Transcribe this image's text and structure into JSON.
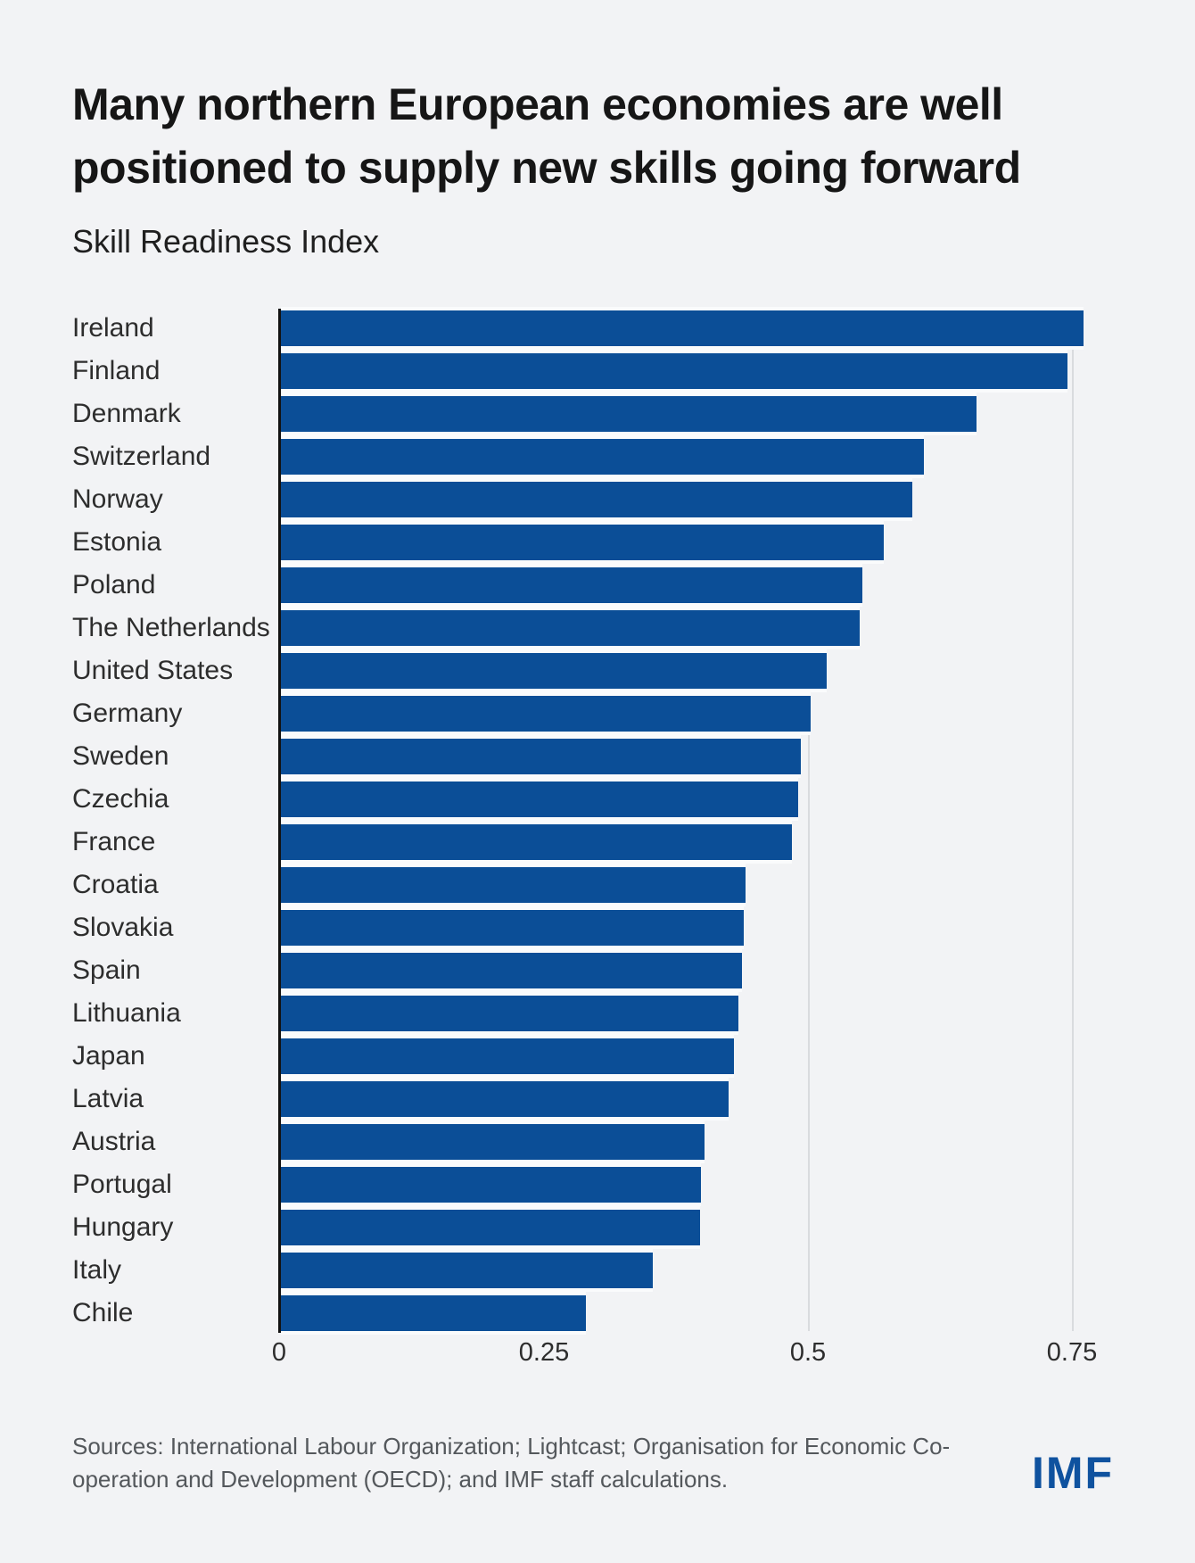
{
  "page": {
    "background": "#f2f3f5",
    "title_line1": "Many northern European economies are well",
    "title_line2": "positioned to supply new skills going forward",
    "subtitle": "Skill Readiness Index"
  },
  "chart_data": {
    "type": "bar",
    "orientation": "horizontal",
    "title": "Skill Readiness Index",
    "categories": [
      "Ireland",
      "Finland",
      "Denmark",
      "Switzerland",
      "Norway",
      "Estonia",
      "Poland",
      "The Netherlands",
      "United States",
      "Germany",
      "Sweden",
      "Czechia",
      "France",
      "Croatia",
      "Slovakia",
      "Spain",
      "Lithuania",
      "Japan",
      "Latvia",
      "Austria",
      "Portugal",
      "Hungary",
      "Italy",
      "Chile"
    ],
    "values": [
      0.76,
      0.745,
      0.659,
      0.609,
      0.598,
      0.571,
      0.551,
      0.548,
      0.517,
      0.502,
      0.492,
      0.49,
      0.484,
      0.44,
      0.438,
      0.437,
      0.433,
      0.429,
      0.424,
      0.401,
      0.398,
      0.397,
      0.352,
      0.289
    ],
    "xlabel": "",
    "ylabel": "",
    "xlim": [
      0,
      0.87
    ],
    "xticks": [
      0,
      0.25,
      0.5,
      0.75
    ],
    "xtick_labels": [
      "0",
      "0.25",
      "0.5",
      "0.75"
    ],
    "bar_color": "#0b4e97",
    "grid": "vertical-gridlines-at-ticks",
    "legend": "none"
  },
  "footer": {
    "sources_line1": "Sources: International Labour Organization; Lightcast; Organisation for Economic Co-",
    "sources_line2": "operation and Development (OECD); and IMF staff calculations.",
    "logo": "IMF",
    "logo_color": "#0f529f"
  }
}
